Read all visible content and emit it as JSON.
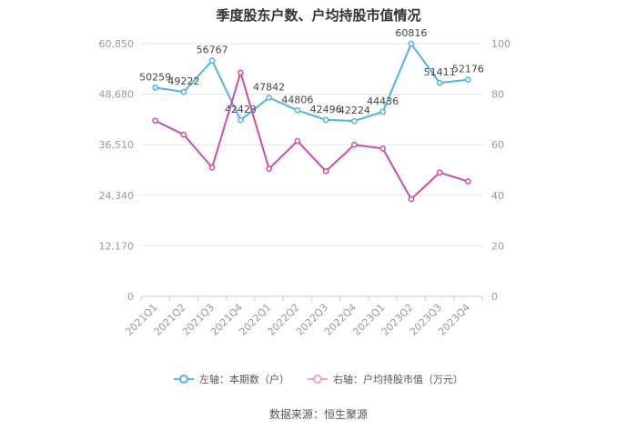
{
  "chart_data": {
    "type": "line",
    "title": "季度股东户数、户均持股市值情况",
    "categories": [
      "2021Q1",
      "2021Q2",
      "2021Q3",
      "2021Q4",
      "2022Q1",
      "2022Q2",
      "2022Q3",
      "2022Q4",
      "2023Q1",
      "2023Q2",
      "2023Q3",
      "2023Q4"
    ],
    "left_axis": {
      "ticks": [
        "0",
        "12,170",
        "24,340",
        "36,510",
        "48,680",
        "60,850"
      ],
      "min": 0,
      "max": 60850
    },
    "right_axis": {
      "ticks": [
        "0",
        "20",
        "40",
        "60",
        "80",
        "100"
      ],
      "min": 0,
      "max": 100
    },
    "series": [
      {
        "name": "左轴：本期数（户）",
        "axis": "left",
        "color": "#4fb3e8",
        "values": [
          50259,
          49222,
          56767,
          42423,
          47842,
          44806,
          42496,
          42224,
          44436,
          60816,
          51411,
          52176
        ],
        "labels": [
          "50259",
          "49222",
          "56767",
          "42423",
          "47842",
          "44806",
          "42496",
          "42224",
          "44436",
          "60816",
          "51411",
          "52176"
        ]
      },
      {
        "name": "右轴：户均持股市值（万元）",
        "axis": "right",
        "color": "#cc4fa6",
        "values": [
          69.5,
          64.0,
          51.0,
          88.5,
          50.5,
          61.5,
          49.5,
          60.0,
          58.5,
          38.5,
          49.0,
          45.5
        ]
      }
    ],
    "grid": "horizontal",
    "legend_position": "bottom",
    "source": "数据来源：恒生聚源"
  }
}
